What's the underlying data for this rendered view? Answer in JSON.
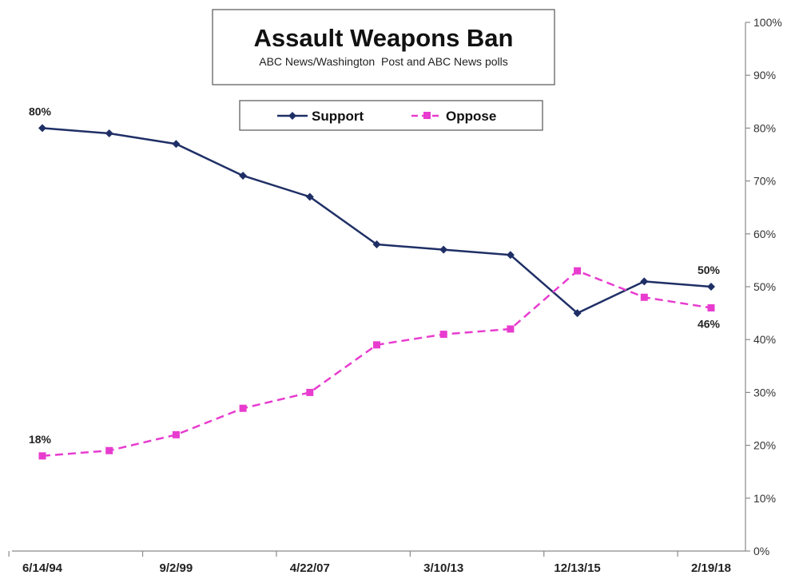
{
  "chart_data": {
    "type": "line",
    "title": "Assault Weapons Ban",
    "subtitle": "ABC News/Washington  Post and ABC News polls",
    "x": [
      "6/14/94",
      "",
      "9/2/99",
      "",
      "4/22/07",
      "",
      "3/10/13",
      "",
      "12/13/15",
      "",
      "2/19/18"
    ],
    "series": [
      {
        "name": "Support",
        "values": [
          80,
          79,
          77,
          71,
          67,
          58,
          57,
          56,
          45,
          51,
          50
        ],
        "color": "#1f2f66",
        "style": "solid",
        "marker": "diamond"
      },
      {
        "name": "Oppose",
        "values": [
          18,
          19,
          22,
          27,
          30,
          39,
          41,
          42,
          53,
          48,
          46
        ],
        "color": "#e83ccf",
        "style": "dashed",
        "marker": "square"
      }
    ],
    "y_ticks": [
      "0%",
      "10%",
      "20%",
      "30%",
      "40%",
      "50%",
      "60%",
      "70%",
      "80%",
      "90%",
      "100%"
    ],
    "ylim": [
      0,
      100
    ],
    "y_axis_side": "right",
    "grid": false,
    "legend_position": "top-center",
    "data_labels": [
      {
        "series": "Support",
        "index": 0,
        "text": "80%"
      },
      {
        "series": "Oppose",
        "index": 0,
        "text": "18%"
      },
      {
        "series": "Support",
        "index": 10,
        "text": "50%"
      },
      {
        "series": "Oppose",
        "index": 10,
        "text": "46%"
      }
    ],
    "xlabel": "",
    "ylabel": ""
  }
}
